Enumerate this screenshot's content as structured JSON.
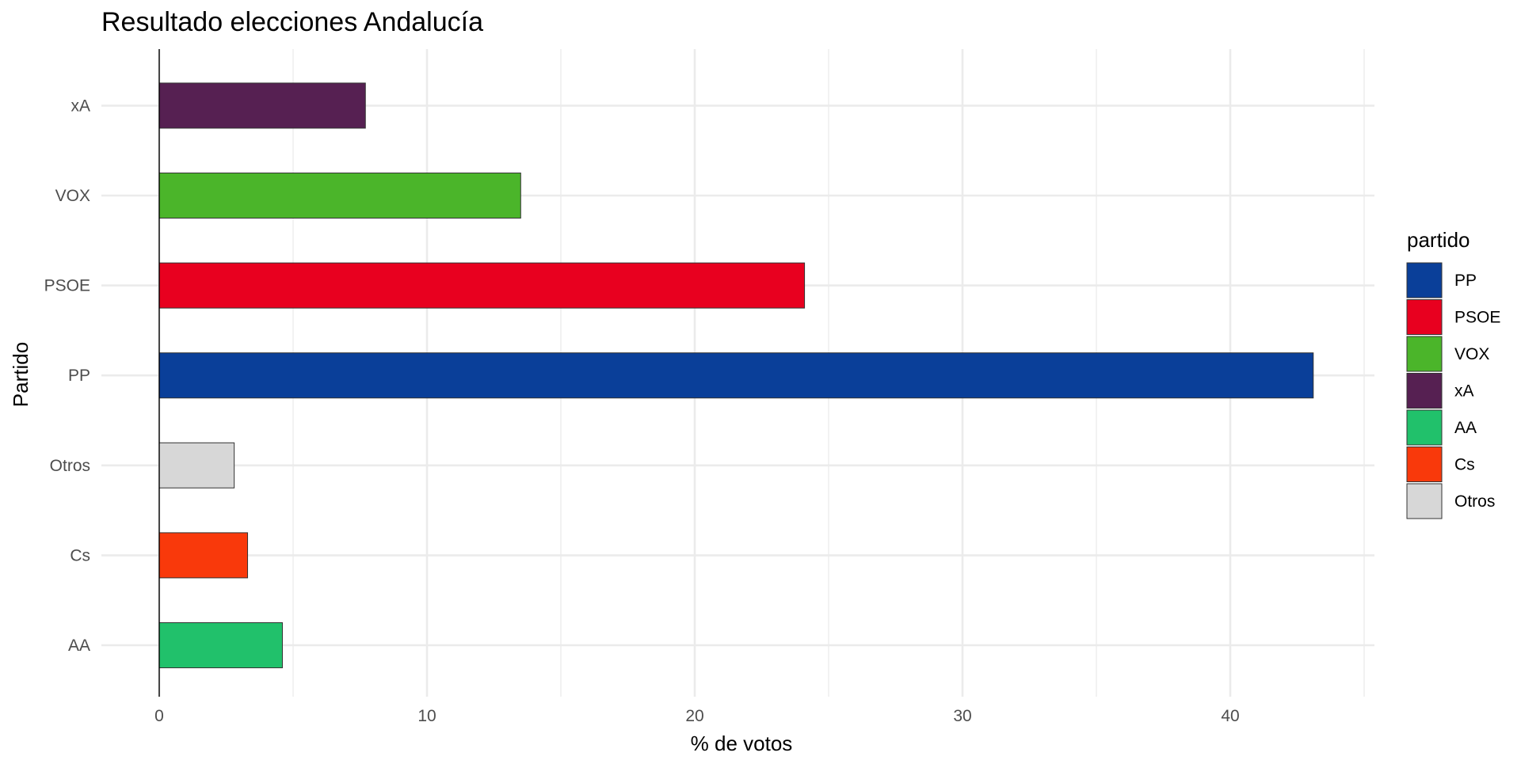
{
  "chart_data": {
    "type": "bar",
    "orientation": "horizontal",
    "title": "Resultado elecciones Andalucía",
    "xlabel": "% de votos",
    "ylabel": "Partido",
    "xlim": [
      0,
      45
    ],
    "x_ticks": [
      0,
      10,
      20,
      30,
      40
    ],
    "categories": [
      "AA",
      "Cs",
      "Otros",
      "PP",
      "PSOE",
      "VOX",
      "xA"
    ],
    "values": [
      4.6,
      3.3,
      2.8,
      43.1,
      24.1,
      13.5,
      7.7
    ],
    "colors": [
      "#21C16B",
      "#F9390B",
      "#D7D7D7",
      "#0A3F99",
      "#E8001F",
      "#4BB52A",
      "#562052"
    ],
    "grid": true,
    "legend": {
      "title": "partido",
      "position": "right",
      "entries": [
        {
          "label": "PP",
          "color": "#0A3F99"
        },
        {
          "label": "PSOE",
          "color": "#E8001F"
        },
        {
          "label": "VOX",
          "color": "#4BB52A"
        },
        {
          "label": "xA",
          "color": "#562052"
        },
        {
          "label": "AA",
          "color": "#21C16B"
        },
        {
          "label": "Cs",
          "color": "#F9390B"
        },
        {
          "label": "Otros",
          "color": "#D7D7D7"
        }
      ]
    }
  }
}
